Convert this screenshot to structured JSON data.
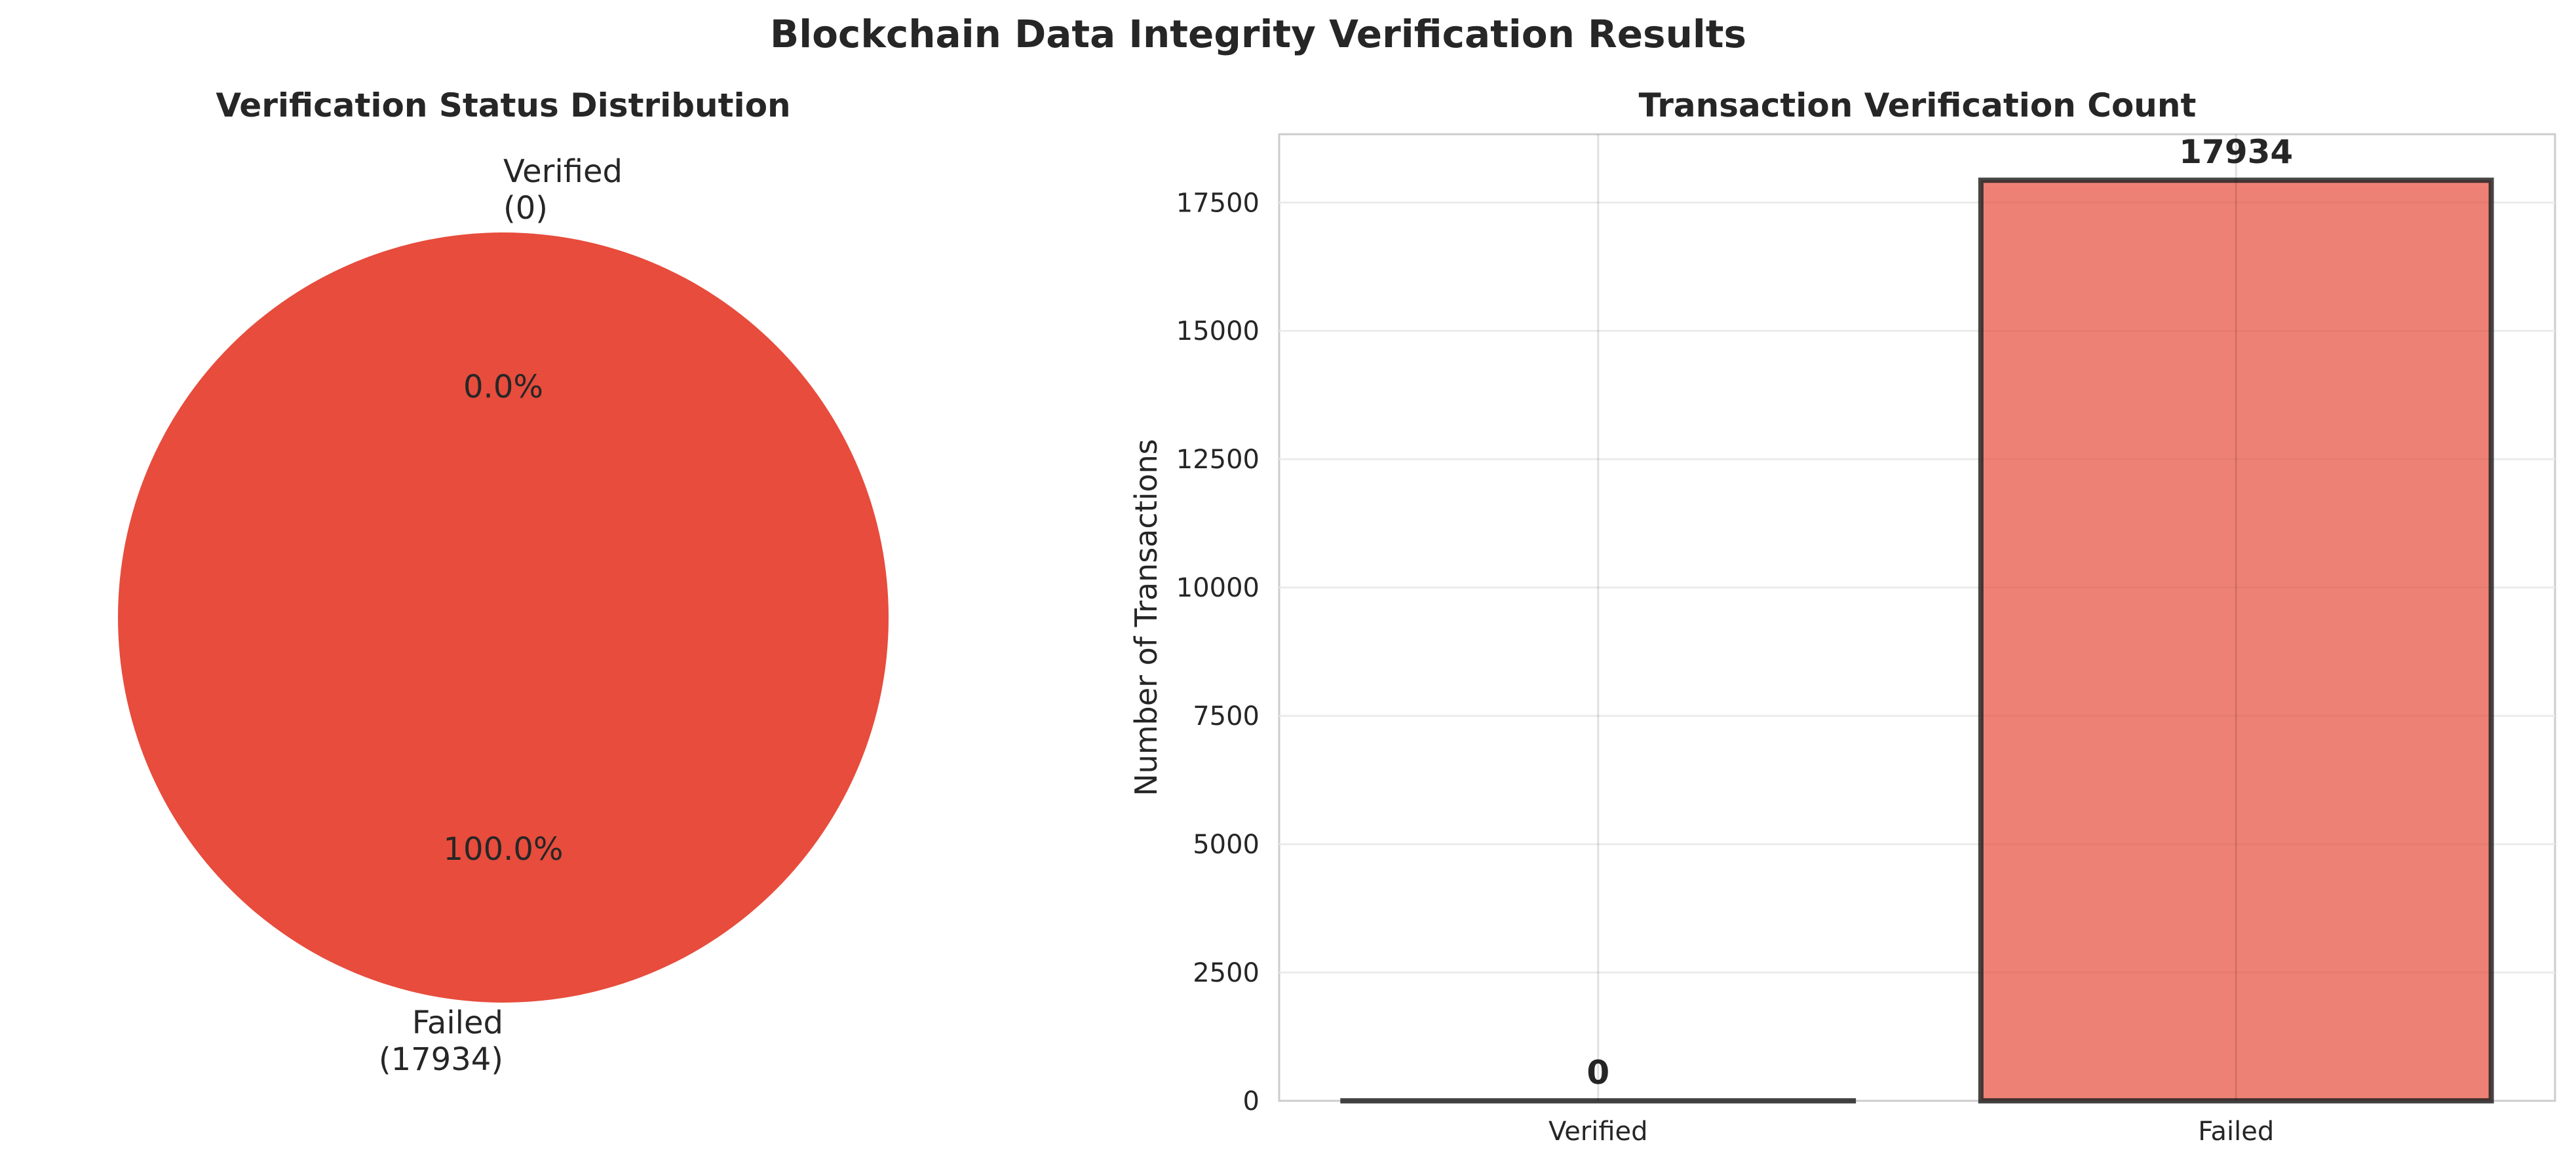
{
  "figure": {
    "title": "Blockchain Data Integrity Verification Results"
  },
  "chart_data": [
    {
      "type": "pie",
      "title": "Verification Status Distribution",
      "slices": [
        {
          "label": "Verified",
          "count_label": "(0)",
          "value": 0,
          "percent_label": "0.0%",
          "color": "#2ecc71"
        },
        {
          "label": "Failed",
          "count_label": "(17934)",
          "value": 17934,
          "percent_label": "100.0%",
          "color": "#e74c3c"
        }
      ],
      "startangle": 90
    },
    {
      "type": "bar",
      "title": "Transaction Verification Count",
      "categories": [
        "Verified",
        "Failed"
      ],
      "values": [
        0,
        17934
      ],
      "value_labels": [
        "0",
        "17934"
      ],
      "colors": [
        "#2ecc71",
        "#e74c3c"
      ],
      "xlabel": "",
      "ylabel": "Number of Transactions",
      "ylim": [
        0,
        18830
      ],
      "yticks": [
        0,
        2500,
        5000,
        7500,
        10000,
        12500,
        15000,
        17500
      ],
      "ytick_labels": [
        "0",
        "2500",
        "5000",
        "7500",
        "10000",
        "12500",
        "15000",
        "17500"
      ],
      "grid": true
    }
  ]
}
